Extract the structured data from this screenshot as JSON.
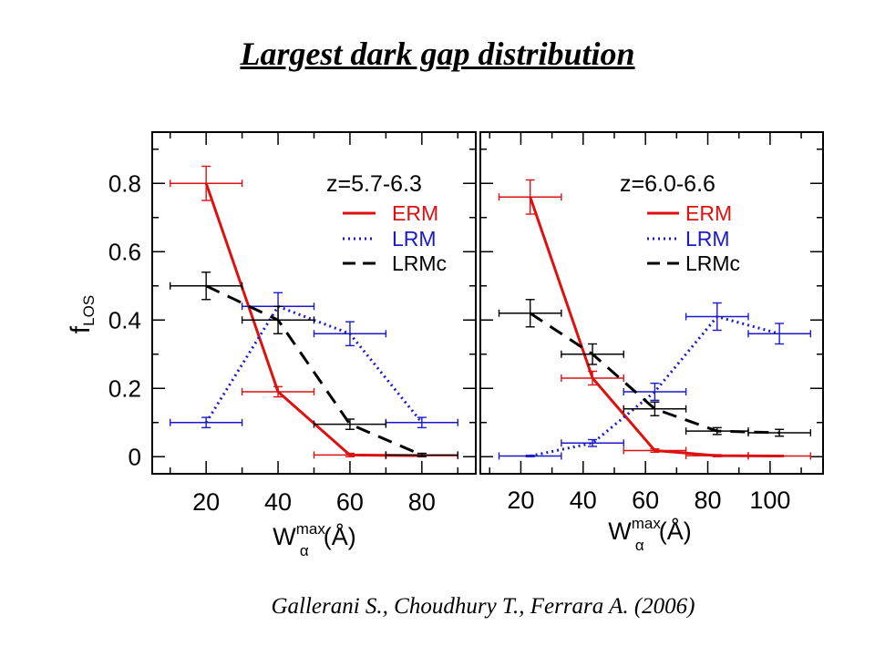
{
  "slide": {
    "title": "Largest dark gap distribution",
    "citation": "Gallerani S., Choudhury T., Ferrara A. (2006)"
  },
  "colors": {
    "ERM": "#dd1111",
    "LRM": "#1a1acc",
    "LRMc": "#000000"
  },
  "chart_data": [
    {
      "type": "line",
      "panel_label": "z=5.7-6.3",
      "xlabel": "W",
      "xlabel_sup": "max",
      "xlabel_sub": "α",
      "xlabel_unit": "(Å)",
      "ylabel": "f",
      "ylabel_sub": "LOS",
      "xlim": [
        5,
        95
      ],
      "ylim": [
        -0.05,
        0.95
      ],
      "xticks": [
        "20",
        "40",
        "60",
        "80"
      ],
      "yticks": [
        "0",
        "0.2",
        "0.4",
        "0.6",
        "0.8"
      ],
      "legend_position": "top-right",
      "series": [
        {
          "name": "ERM",
          "style": "solid",
          "color": "#dd1111",
          "points": [
            {
              "x": 20,
              "y": 0.8,
              "xerr": 10,
              "yerr": 0.05
            },
            {
              "x": 40,
              "y": 0.19,
              "xerr": 10,
              "yerr": 0.015
            },
            {
              "x": 60,
              "y": 0.005,
              "xerr": 10,
              "yerr": 0.005
            },
            {
              "x": 80,
              "y": 0.003,
              "xerr": 10,
              "yerr": 0.003
            }
          ]
        },
        {
          "name": "LRM",
          "style": "dotted",
          "color": "#1a1acc",
          "points": [
            {
              "x": 20,
              "y": 0.1,
              "xerr": 10,
              "yerr": 0.015
            },
            {
              "x": 40,
              "y": 0.44,
              "xerr": 10,
              "yerr": 0.04
            },
            {
              "x": 60,
              "y": 0.36,
              "xerr": 10,
              "yerr": 0.035
            },
            {
              "x": 80,
              "y": 0.1,
              "xerr": 10,
              "yerr": 0.015
            }
          ]
        },
        {
          "name": "LRMc",
          "style": "dashed",
          "color": "#000000",
          "points": [
            {
              "x": 20,
              "y": 0.5,
              "xerr": 10,
              "yerr": 0.04
            },
            {
              "x": 40,
              "y": 0.4,
              "xerr": 10,
              "yerr": 0.04
            },
            {
              "x": 60,
              "y": 0.095,
              "xerr": 10,
              "yerr": 0.015
            },
            {
              "x": 80,
              "y": 0.005,
              "xerr": 10,
              "yerr": 0.005
            }
          ]
        }
      ]
    },
    {
      "type": "line",
      "panel_label": "z=6.0-6.6",
      "xlabel": "W",
      "xlabel_sup": "max",
      "xlabel_sub": "α",
      "xlabel_unit": "(Å)",
      "xlim": [
        7,
        117
      ],
      "ylim": [
        -0.05,
        0.95
      ],
      "xticks": [
        "20",
        "40",
        "60",
        "80",
        "100"
      ],
      "yticks": [],
      "legend_position": "top-right",
      "series": [
        {
          "name": "ERM",
          "style": "solid",
          "color": "#dd1111",
          "points": [
            {
              "x": 23,
              "y": 0.76,
              "xerr": 10,
              "yerr": 0.05
            },
            {
              "x": 43,
              "y": 0.23,
              "xerr": 10,
              "yerr": 0.02
            },
            {
              "x": 63,
              "y": 0.018,
              "xerr": 10,
              "yerr": 0.005
            },
            {
              "x": 83,
              "y": 0.003,
              "xerr": 10,
              "yerr": 0.003
            },
            {
              "x": 103,
              "y": 0.002,
              "xerr": 10,
              "yerr": 0.002
            }
          ]
        },
        {
          "name": "LRM",
          "style": "dotted",
          "color": "#1a1acc",
          "points": [
            {
              "x": 23,
              "y": 0.002,
              "xerr": 10,
              "yerr": 0.002
            },
            {
              "x": 43,
              "y": 0.04,
              "xerr": 10,
              "yerr": 0.01
            },
            {
              "x": 63,
              "y": 0.19,
              "xerr": 10,
              "yerr": 0.025
            },
            {
              "x": 83,
              "y": 0.41,
              "xerr": 10,
              "yerr": 0.04
            },
            {
              "x": 103,
              "y": 0.36,
              "xerr": 10,
              "yerr": 0.03
            }
          ]
        },
        {
          "name": "LRMc",
          "style": "dashed",
          "color": "#000000",
          "points": [
            {
              "x": 23,
              "y": 0.42,
              "xerr": 10,
              "yerr": 0.04
            },
            {
              "x": 43,
              "y": 0.3,
              "xerr": 10,
              "yerr": 0.03
            },
            {
              "x": 63,
              "y": 0.14,
              "xerr": 10,
              "yerr": 0.02
            },
            {
              "x": 83,
              "y": 0.075,
              "xerr": 10,
              "yerr": 0.01
            },
            {
              "x": 103,
              "y": 0.07,
              "xerr": 10,
              "yerr": 0.01
            }
          ]
        }
      ]
    }
  ]
}
